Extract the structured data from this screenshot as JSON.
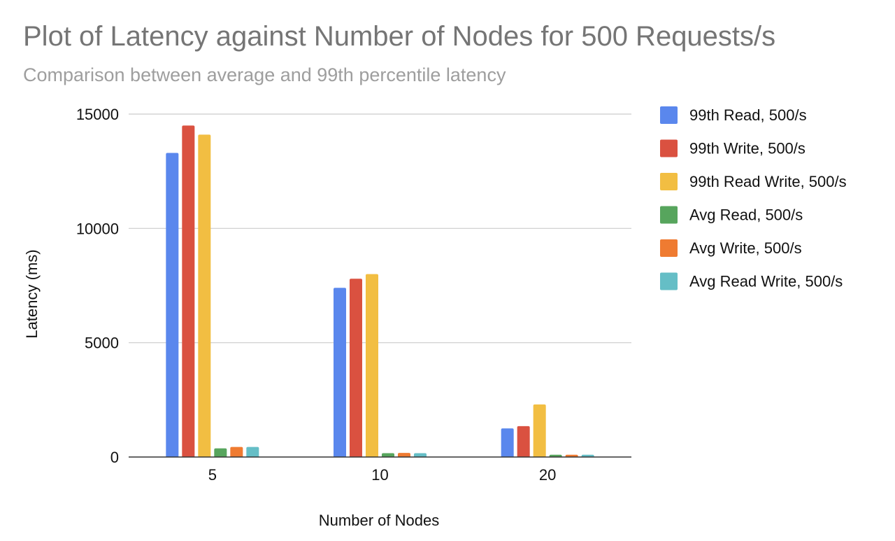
{
  "chart_data": {
    "type": "bar",
    "title": "Plot of Latency against Number of Nodes for 500 Requests/s",
    "subtitle": "Comparison between average and 99th percentile latency",
    "xlabel": "Number of Nodes",
    "ylabel": "Latency (ms)",
    "categories": [
      "5",
      "10",
      "20"
    ],
    "ylim": [
      0,
      15000
    ],
    "yticks": [
      0,
      5000,
      10000,
      15000
    ],
    "grid": true,
    "legend_position": "right",
    "series": [
      {
        "name": "99th Read, 500/s",
        "color": "#5A87ED",
        "values": [
          13300,
          7400,
          1250
        ]
      },
      {
        "name": "99th Write, 500/s",
        "color": "#DA5140",
        "values": [
          14500,
          7800,
          1350
        ]
      },
      {
        "name": "99th Read Write, 500/s",
        "color": "#F2BE42",
        "values": [
          14100,
          8000,
          2300
        ]
      },
      {
        "name": "Avg Read, 500/s",
        "color": "#57A55D",
        "values": [
          380,
          170,
          100
        ]
      },
      {
        "name": "Avg Write, 500/s",
        "color": "#EF7B31",
        "values": [
          440,
          180,
          100
        ]
      },
      {
        "name": "Avg Read Write, 500/s",
        "color": "#65BEC6",
        "values": [
          440,
          170,
          100
        ]
      }
    ]
  }
}
